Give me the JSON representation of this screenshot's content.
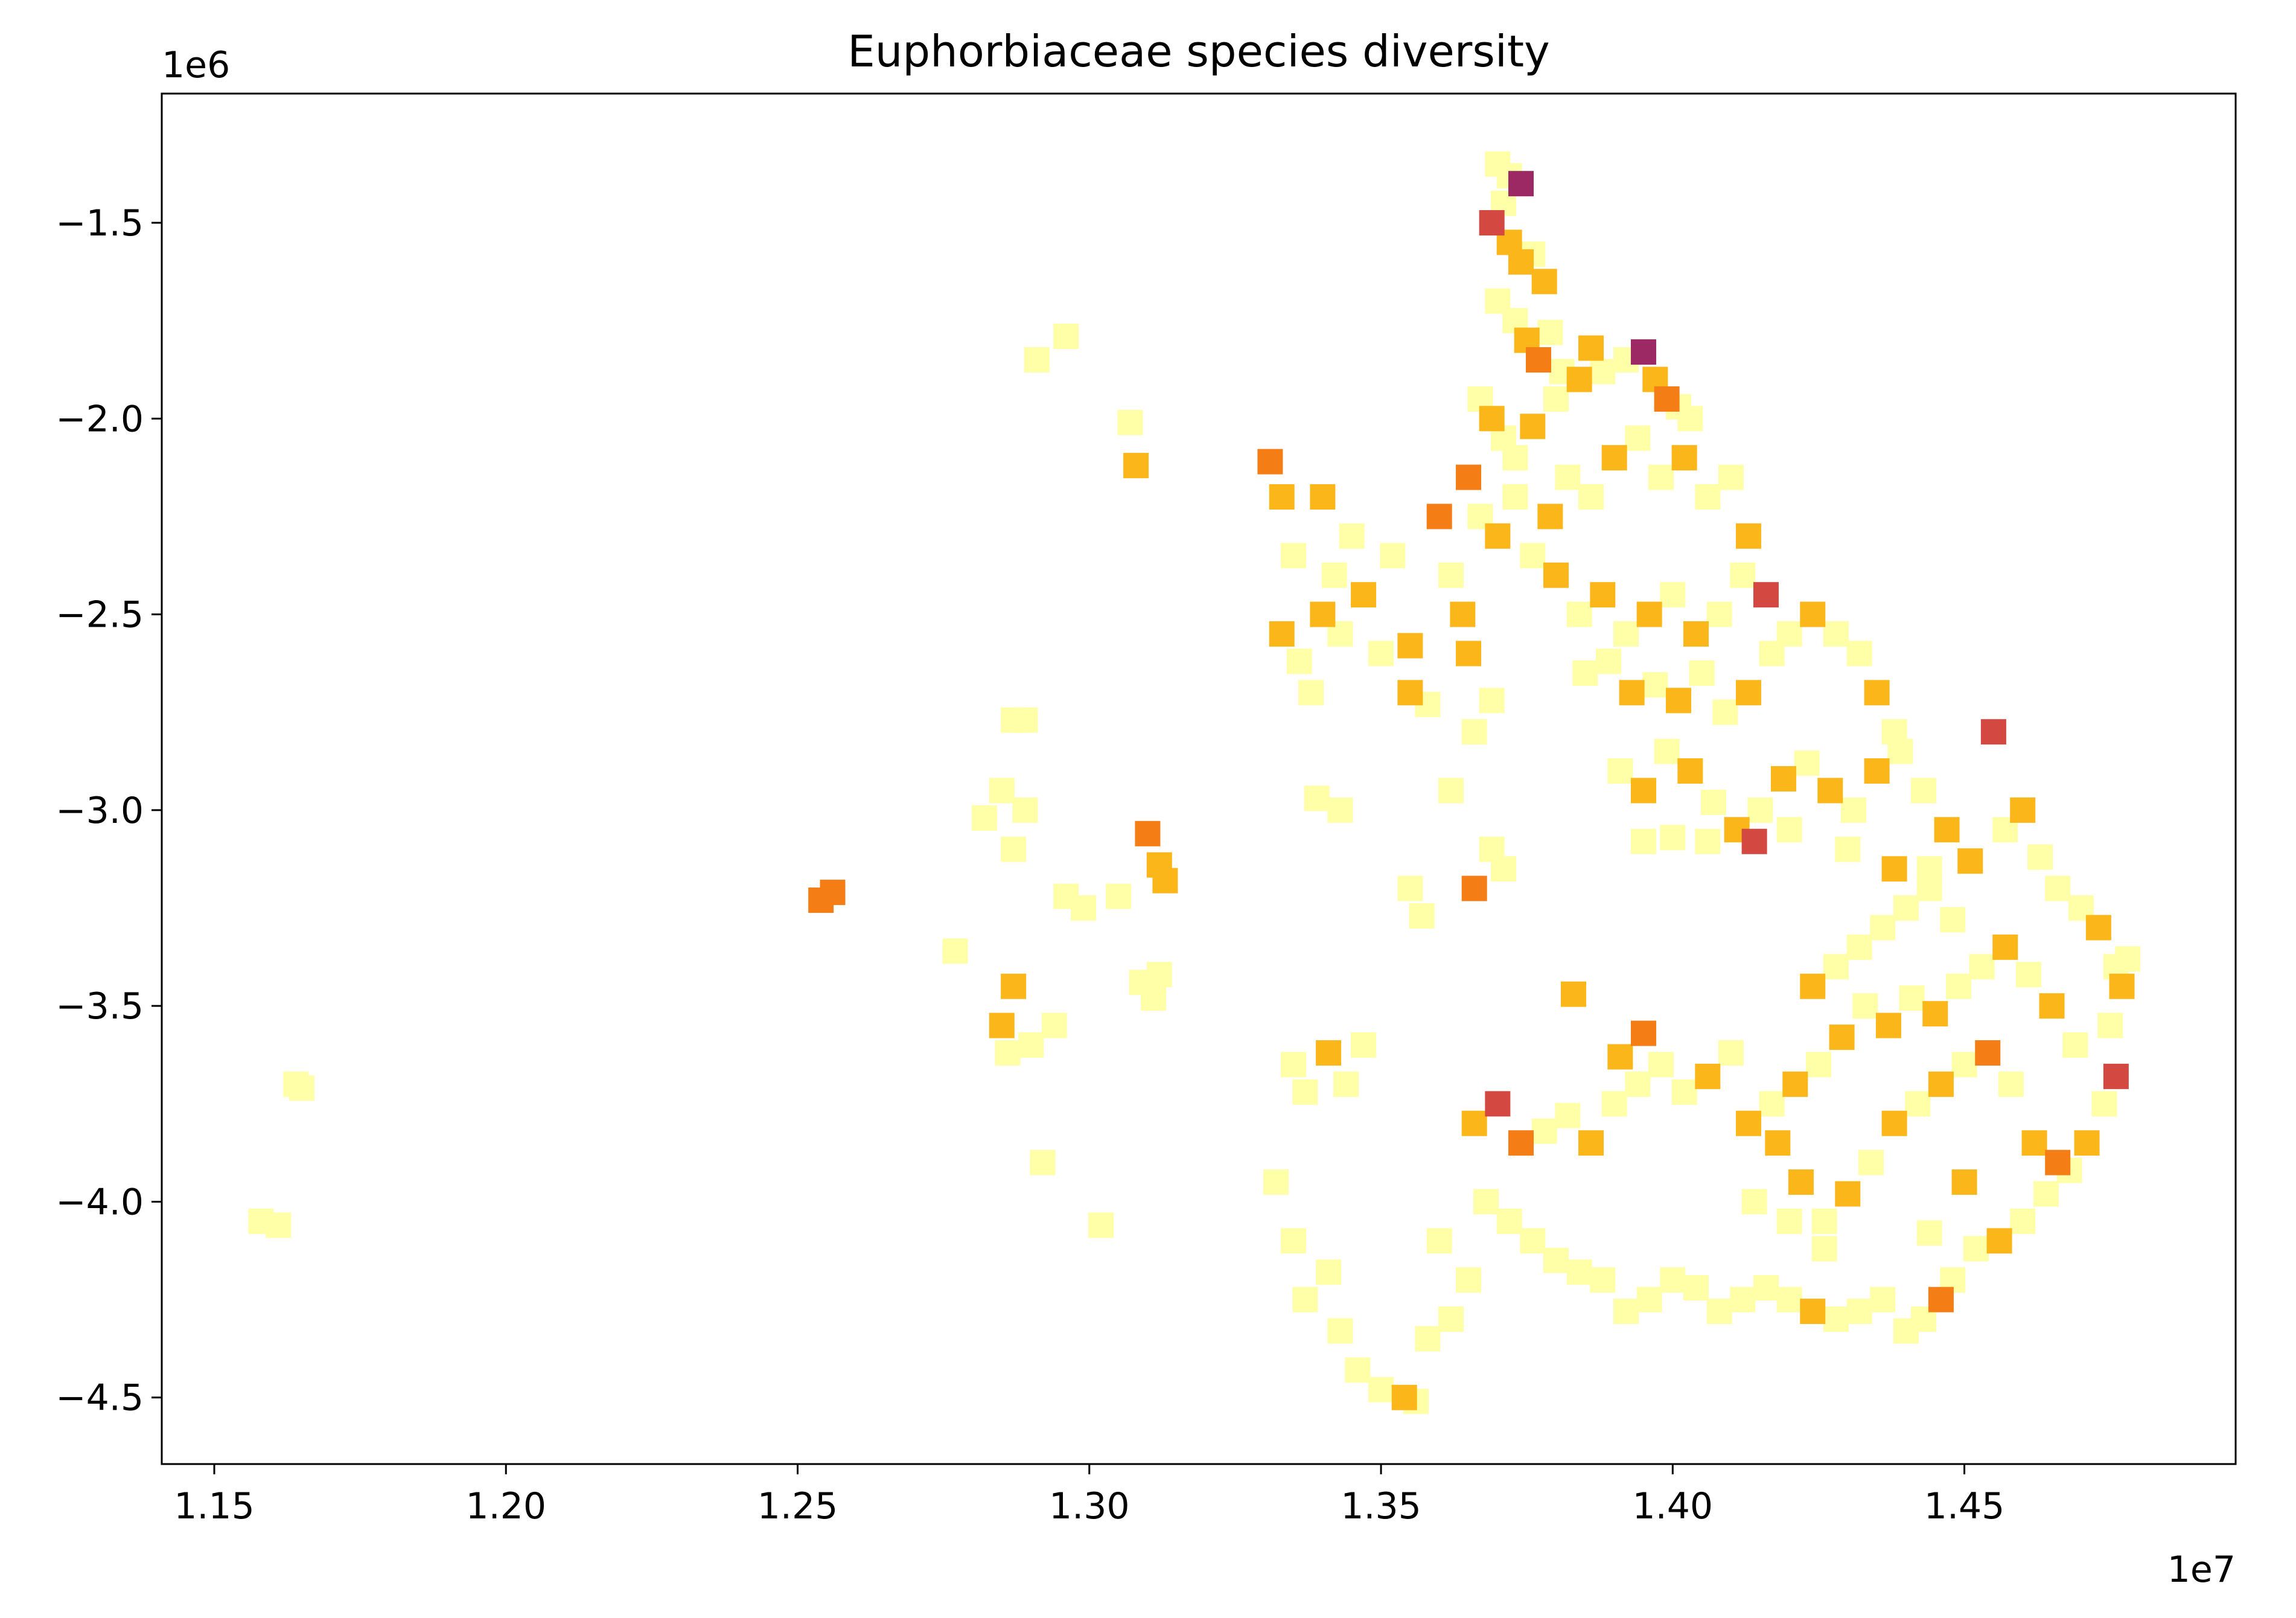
{
  "chart_data": {
    "type": "scatter",
    "title": "Euphorbiaceae species diversity",
    "xlabel": "",
    "ylabel": "",
    "x_multiplier": "1e7",
    "y_multiplier": "1e6",
    "xlim": [
      11.41,
      14.965
    ],
    "ylim": [
      -4.67,
      -1.17
    ],
    "x_ticks": [
      {
        "value": 11.5,
        "label": "1.15"
      },
      {
        "value": 12.0,
        "label": "1.20"
      },
      {
        "value": 12.5,
        "label": "1.25"
      },
      {
        "value": 13.0,
        "label": "1.30"
      },
      {
        "value": 13.5,
        "label": "1.35"
      },
      {
        "value": 14.0,
        "label": "1.40"
      },
      {
        "value": 14.5,
        "label": "1.45"
      }
    ],
    "y_ticks": [
      {
        "value": -1.5,
        "label": "−1.5"
      },
      {
        "value": -2.0,
        "label": "−2.0"
      },
      {
        "value": -2.5,
        "label": "−2.5"
      },
      {
        "value": -3.0,
        "label": "−3.0"
      },
      {
        "value": -3.5,
        "label": "−3.5"
      },
      {
        "value": -4.0,
        "label": "−4.0"
      },
      {
        "value": -4.5,
        "label": "−4.5"
      }
    ],
    "grid": false,
    "legend": "none",
    "marker": "square",
    "colormap": [
      "#ffffa8",
      "#fbb61a",
      "#f57d15",
      "#d44842",
      "#9c2964"
    ],
    "points": [
      [
        11.58,
        -4.05,
        0
      ],
      [
        11.61,
        -4.06,
        0
      ],
      [
        11.64,
        -3.7,
        0
      ],
      [
        11.65,
        -3.71,
        0
      ],
      [
        12.54,
        -3.23,
        2
      ],
      [
        12.56,
        -3.21,
        2
      ],
      [
        12.77,
        -3.36,
        0
      ],
      [
        12.82,
        -3.02,
        0
      ],
      [
        12.85,
        -2.95,
        0
      ],
      [
        12.87,
        -3.1,
        0
      ],
      [
        12.89,
        -3.0,
        0
      ],
      [
        12.87,
        -2.77,
        0
      ],
      [
        12.89,
        -2.77,
        0
      ],
      [
        12.91,
        -1.85,
        0
      ],
      [
        12.96,
        -1.79,
        0
      ],
      [
        12.85,
        -3.55,
        1
      ],
      [
        12.87,
        -3.45,
        1
      ],
      [
        12.86,
        -3.62,
        0
      ],
      [
        12.9,
        -3.6,
        0
      ],
      [
        12.94,
        -3.55,
        0
      ],
      [
        12.92,
        -3.9,
        0
      ],
      [
        12.96,
        -3.22,
        0
      ],
      [
        12.99,
        -3.25,
        0
      ],
      [
        13.02,
        -4.06,
        0
      ],
      [
        13.07,
        -2.01,
        0
      ],
      [
        13.08,
        -2.12,
        1
      ],
      [
        13.1,
        -3.06,
        2
      ],
      [
        13.12,
        -3.14,
        1
      ],
      [
        13.13,
        -3.18,
        1
      ],
      [
        13.09,
        -3.44,
        0
      ],
      [
        13.11,
        -3.48,
        0
      ],
      [
        13.12,
        -3.42,
        0
      ],
      [
        13.05,
        -3.22,
        0
      ],
      [
        13.31,
        -2.11,
        2
      ],
      [
        13.33,
        -2.2,
        1
      ],
      [
        13.35,
        -2.35,
        0
      ],
      [
        13.33,
        -2.55,
        1
      ],
      [
        13.36,
        -2.62,
        0
      ],
      [
        13.38,
        -2.7,
        0
      ],
      [
        13.4,
        -2.5,
        1
      ],
      [
        13.42,
        -2.4,
        0
      ],
      [
        13.45,
        -2.3,
        0
      ],
      [
        13.47,
        -2.45,
        1
      ],
      [
        13.4,
        -2.2,
        1
      ],
      [
        13.43,
        -2.55,
        0
      ],
      [
        13.5,
        -2.6,
        0
      ],
      [
        13.55,
        -2.58,
        1
      ],
      [
        13.6,
        -2.25,
        2
      ],
      [
        13.62,
        -2.4,
        0
      ],
      [
        13.65,
        -2.6,
        1
      ],
      [
        13.55,
        -2.7,
        1
      ],
      [
        13.58,
        -2.73,
        0
      ],
      [
        13.52,
        -2.35,
        0
      ],
      [
        13.39,
        -2.97,
        0
      ],
      [
        13.43,
        -3.0,
        0
      ],
      [
        13.35,
        -3.65,
        0
      ],
      [
        13.37,
        -3.72,
        0
      ],
      [
        13.41,
        -3.62,
        1
      ],
      [
        13.44,
        -3.7,
        0
      ],
      [
        13.47,
        -3.6,
        0
      ],
      [
        13.32,
        -3.95,
        0
      ],
      [
        13.35,
        -4.1,
        0
      ],
      [
        13.37,
        -4.25,
        0
      ],
      [
        13.41,
        -4.18,
        0
      ],
      [
        13.43,
        -4.33,
        0
      ],
      [
        13.46,
        -4.43,
        0
      ],
      [
        13.5,
        -4.48,
        0
      ],
      [
        13.54,
        -4.5,
        1
      ],
      [
        13.56,
        -4.51,
        0
      ],
      [
        13.58,
        -4.35,
        0
      ],
      [
        13.62,
        -4.3,
        0
      ],
      [
        13.65,
        -4.2,
        0
      ],
      [
        13.6,
        -4.1,
        0
      ],
      [
        13.66,
        -3.2,
        2
      ],
      [
        13.69,
        -3.1,
        0
      ],
      [
        13.71,
        -3.15,
        0
      ],
      [
        13.57,
        -3.27,
        0
      ],
      [
        13.55,
        -3.2,
        0
      ],
      [
        13.64,
        -2.5,
        1
      ],
      [
        13.66,
        -2.8,
        0
      ],
      [
        13.69,
        -2.72,
        0
      ],
      [
        13.62,
        -2.95,
        0
      ],
      [
        13.7,
        -1.35,
        0
      ],
      [
        13.72,
        -1.38,
        0
      ],
      [
        13.74,
        -1.4,
        4
      ],
      [
        13.71,
        -1.45,
        0
      ],
      [
        13.69,
        -1.5,
        3
      ],
      [
        13.72,
        -1.55,
        1
      ],
      [
        13.74,
        -1.6,
        1
      ],
      [
        13.76,
        -1.58,
        0
      ],
      [
        13.78,
        -1.65,
        1
      ],
      [
        13.7,
        -1.7,
        0
      ],
      [
        13.73,
        -1.75,
        0
      ],
      [
        13.75,
        -1.8,
        1
      ],
      [
        13.77,
        -1.85,
        2
      ],
      [
        13.79,
        -1.78,
        0
      ],
      [
        13.81,
        -1.88,
        0
      ],
      [
        13.67,
        -1.95,
        0
      ],
      [
        13.69,
        -2.0,
        1
      ],
      [
        13.71,
        -2.05,
        0
      ],
      [
        13.73,
        -2.1,
        0
      ],
      [
        13.76,
        -2.02,
        1
      ],
      [
        13.8,
        -1.95,
        0
      ],
      [
        13.84,
        -1.9,
        1
      ],
      [
        13.86,
        -1.82,
        1
      ],
      [
        13.88,
        -1.88,
        0
      ],
      [
        13.92,
        -1.85,
        0
      ],
      [
        13.95,
        -1.83,
        4
      ],
      [
        13.97,
        -1.9,
        1
      ],
      [
        13.99,
        -1.95,
        2
      ],
      [
        14.01,
        -1.97,
        0
      ],
      [
        14.03,
        -2.0,
        0
      ],
      [
        13.65,
        -2.15,
        2
      ],
      [
        13.67,
        -2.25,
        0
      ],
      [
        13.7,
        -2.3,
        1
      ],
      [
        13.73,
        -2.2,
        0
      ],
      [
        13.76,
        -2.35,
        0
      ],
      [
        13.79,
        -2.25,
        1
      ],
      [
        13.82,
        -2.15,
        0
      ],
      [
        13.86,
        -2.2,
        0
      ],
      [
        13.9,
        -2.1,
        1
      ],
      [
        13.94,
        -2.05,
        0
      ],
      [
        13.98,
        -2.15,
        0
      ],
      [
        14.02,
        -2.1,
        1
      ],
      [
        14.06,
        -2.2,
        0
      ],
      [
        14.1,
        -2.15,
        0
      ],
      [
        14.13,
        -2.3,
        1
      ],
      [
        13.8,
        -2.4,
        1
      ],
      [
        13.84,
        -2.5,
        0
      ],
      [
        13.88,
        -2.45,
        1
      ],
      [
        13.92,
        -2.55,
        0
      ],
      [
        13.96,
        -2.5,
        1
      ],
      [
        14.0,
        -2.45,
        0
      ],
      [
        14.04,
        -2.55,
        1
      ],
      [
        14.08,
        -2.5,
        0
      ],
      [
        14.12,
        -2.4,
        0
      ],
      [
        14.16,
        -2.45,
        3
      ],
      [
        13.85,
        -2.65,
        0
      ],
      [
        13.89,
        -2.62,
        0
      ],
      [
        13.93,
        -2.7,
        1
      ],
      [
        13.97,
        -2.68,
        0
      ],
      [
        14.01,
        -2.72,
        1
      ],
      [
        14.05,
        -2.65,
        0
      ],
      [
        14.09,
        -2.75,
        0
      ],
      [
        14.13,
        -2.7,
        1
      ],
      [
        14.17,
        -2.6,
        0
      ],
      [
        14.2,
        -2.55,
        0
      ],
      [
        14.24,
        -2.5,
        1
      ],
      [
        14.28,
        -2.55,
        0
      ],
      [
        14.32,
        -2.6,
        0
      ],
      [
        14.35,
        -2.7,
        1
      ],
      [
        14.38,
        -2.8,
        0
      ],
      [
        13.91,
        -2.9,
        0
      ],
      [
        13.95,
        -2.95,
        1
      ],
      [
        13.99,
        -2.85,
        0
      ],
      [
        14.03,
        -2.9,
        1
      ],
      [
        14.07,
        -2.98,
        0
      ],
      [
        14.11,
        -3.05,
        1
      ],
      [
        14.15,
        -3.0,
        0
      ],
      [
        14.19,
        -2.92,
        1
      ],
      [
        14.23,
        -2.88,
        0
      ],
      [
        14.27,
        -2.95,
        1
      ],
      [
        14.31,
        -3.0,
        0
      ],
      [
        14.35,
        -2.9,
        1
      ],
      [
        14.39,
        -2.85,
        0
      ],
      [
        14.43,
        -2.95,
        0
      ],
      [
        14.47,
        -3.05,
        1
      ],
      [
        13.95,
        -3.08,
        0
      ],
      [
        14.0,
        -3.07,
        0
      ],
      [
        14.06,
        -3.08,
        0
      ],
      [
        14.14,
        -3.08,
        3
      ],
      [
        14.2,
        -3.05,
        0
      ],
      [
        14.3,
        -3.1,
        0
      ],
      [
        14.38,
        -3.15,
        1
      ],
      [
        14.44,
        -3.15,
        0
      ],
      [
        14.51,
        -3.13,
        1
      ],
      [
        14.55,
        -2.8,
        3
      ],
      [
        14.57,
        -3.05,
        0
      ],
      [
        14.6,
        -3.0,
        1
      ],
      [
        14.63,
        -3.12,
        0
      ],
      [
        14.66,
        -3.2,
        0
      ],
      [
        14.7,
        -3.25,
        0
      ],
      [
        14.73,
        -3.3,
        1
      ],
      [
        14.76,
        -3.4,
        0
      ],
      [
        14.78,
        -3.38,
        0
      ],
      [
        14.77,
        -3.45,
        1
      ],
      [
        14.75,
        -3.55,
        0
      ],
      [
        14.76,
        -3.68,
        3
      ],
      [
        14.74,
        -3.75,
        0
      ],
      [
        14.71,
        -3.85,
        1
      ],
      [
        14.68,
        -3.92,
        0
      ],
      [
        14.64,
        -3.98,
        0
      ],
      [
        14.6,
        -4.05,
        0
      ],
      [
        14.56,
        -4.1,
        1
      ],
      [
        14.52,
        -4.12,
        0
      ],
      [
        14.48,
        -4.2,
        0
      ],
      [
        14.46,
        -4.25,
        2
      ],
      [
        14.43,
        -4.3,
        0
      ],
      [
        14.4,
        -4.33,
        0
      ],
      [
        14.36,
        -4.25,
        0
      ],
      [
        14.32,
        -4.28,
        0
      ],
      [
        14.28,
        -4.3,
        0
      ],
      [
        14.24,
        -4.28,
        1
      ],
      [
        14.2,
        -4.25,
        0
      ],
      [
        14.16,
        -4.22,
        0
      ],
      [
        14.12,
        -4.25,
        0
      ],
      [
        14.08,
        -4.28,
        0
      ],
      [
        14.04,
        -4.22,
        0
      ],
      [
        14.0,
        -4.2,
        0
      ],
      [
        13.96,
        -4.25,
        0
      ],
      [
        13.92,
        -4.28,
        0
      ],
      [
        13.88,
        -4.2,
        0
      ],
      [
        13.84,
        -4.18,
        0
      ],
      [
        13.8,
        -4.15,
        0
      ],
      [
        13.76,
        -4.1,
        0
      ],
      [
        13.72,
        -4.05,
        0
      ],
      [
        13.68,
        -4.0,
        0
      ],
      [
        13.66,
        -3.8,
        1
      ],
      [
        13.7,
        -3.75,
        3
      ],
      [
        13.74,
        -3.85,
        2
      ],
      [
        13.78,
        -3.82,
        0
      ],
      [
        13.82,
        -3.78,
        0
      ],
      [
        13.86,
        -3.85,
        1
      ],
      [
        13.9,
        -3.75,
        0
      ],
      [
        13.94,
        -3.7,
        0
      ],
      [
        13.98,
        -3.65,
        0
      ],
      [
        14.02,
        -3.72,
        0
      ],
      [
        13.91,
        -3.63,
        1
      ],
      [
        13.95,
        -3.57,
        2
      ],
      [
        13.83,
        -3.47,
        1
      ],
      [
        14.06,
        -3.68,
        1
      ],
      [
        14.1,
        -3.62,
        0
      ],
      [
        14.13,
        -3.8,
        1
      ],
      [
        14.17,
        -3.75,
        0
      ],
      [
        14.21,
        -3.7,
        1
      ],
      [
        14.25,
        -3.65,
        0
      ],
      [
        14.29,
        -3.58,
        1
      ],
      [
        14.33,
        -3.5,
        0
      ],
      [
        14.37,
        -3.55,
        1
      ],
      [
        14.41,
        -3.48,
        0
      ],
      [
        14.45,
        -3.52,
        1
      ],
      [
        14.49,
        -3.45,
        0
      ],
      [
        14.53,
        -3.4,
        0
      ],
      [
        14.57,
        -3.35,
        1
      ],
      [
        14.61,
        -3.42,
        0
      ],
      [
        14.65,
        -3.5,
        1
      ],
      [
        14.69,
        -3.6,
        0
      ],
      [
        14.18,
        -3.85,
        1
      ],
      [
        14.22,
        -3.95,
        1
      ],
      [
        14.26,
        -4.05,
        0
      ],
      [
        14.3,
        -3.98,
        1
      ],
      [
        14.34,
        -3.9,
        0
      ],
      [
        14.38,
        -3.8,
        1
      ],
      [
        14.42,
        -3.75,
        0
      ],
      [
        14.46,
        -3.7,
        1
      ],
      [
        14.5,
        -3.65,
        0
      ],
      [
        14.54,
        -3.62,
        2
      ],
      [
        14.58,
        -3.7,
        0
      ],
      [
        14.62,
        -3.85,
        1
      ],
      [
        14.66,
        -3.9,
        2
      ],
      [
        14.24,
        -3.45,
        1
      ],
      [
        14.28,
        -3.4,
        0
      ],
      [
        14.32,
        -3.35,
        0
      ],
      [
        14.36,
        -3.3,
        0
      ],
      [
        14.4,
        -3.25,
        0
      ],
      [
        14.44,
        -3.2,
        0
      ],
      [
        14.48,
        -3.28,
        0
      ],
      [
        14.14,
        -4.0,
        0
      ],
      [
        14.2,
        -4.05,
        0
      ],
      [
        14.26,
        -4.12,
        0
      ],
      [
        14.44,
        -4.08,
        0
      ],
      [
        14.5,
        -3.95,
        1
      ]
    ]
  }
}
